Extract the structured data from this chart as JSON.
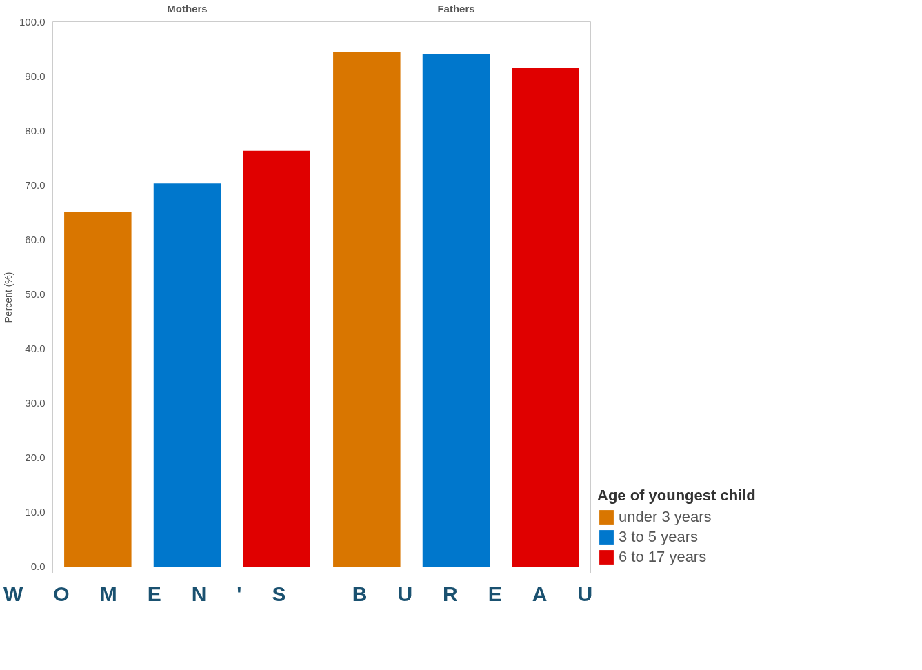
{
  "chart_data": {
    "type": "bar",
    "categories": [
      "Mothers",
      "Fathers"
    ],
    "ylabel": "Percent (%)",
    "ylim": [
      -1.2,
      100
    ],
    "yticks": [
      {
        "value": 0,
        "label": "0.0"
      },
      {
        "value": 10,
        "label": "10.0"
      },
      {
        "value": 20,
        "label": "20.0"
      },
      {
        "value": 30,
        "label": "30.0"
      },
      {
        "value": 40,
        "label": "40.0"
      },
      {
        "value": 50,
        "label": "50.0"
      },
      {
        "value": 60,
        "label": "60.0"
      },
      {
        "value": 70,
        "label": "70.0"
      },
      {
        "value": 80,
        "label": "80.0"
      },
      {
        "value": 90,
        "label": "90.0"
      },
      {
        "value": 100,
        "label": "100.0"
      }
    ],
    "legend": "bottom right",
    "legend_title": "Age of youngest child",
    "annotations": [
      "WOMEN'S BUREAU"
    ],
    "series": [
      {
        "name": "under 3 years",
        "color": "#d97600",
        "values": [
          65.1,
          94.5
        ]
      },
      {
        "name": "3 to 5 years",
        "color": "#0077cc",
        "values": [
          70.3,
          94.0
        ]
      },
      {
        "name": "6 to 17 years",
        "color": "#e00000",
        "values": [
          76.3,
          91.6
        ]
      }
    ]
  }
}
